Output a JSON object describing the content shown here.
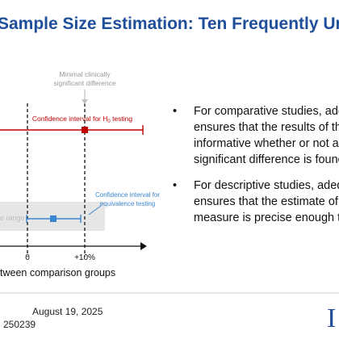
{
  "slide": {
    "title": "Sample Size Estimation: Ten Frequently Unanswered Questions",
    "bullets": [
      {
        "symbol": "•",
        "lines": [
          "For comparative studies, adequate power",
          "ensures that the results of the study are",
          "informative whether or not a clinically",
          "significant difference is found"
        ]
      },
      {
        "symbol": "•",
        "lines": [
          "For descriptive studies, adequate precision",
          "ensures that the estimate of the",
          "measure is precise enough to be useful"
        ]
      }
    ],
    "footer": {
      "date": "August 19, 2025",
      "id": "250239"
    },
    "logo_letter": "I"
  },
  "figure": {
    "annotation_top": [
      "Minimal clinically",
      "significant difference"
    ],
    "h0_label_prefix": "Confidence interval for H",
    "h0_label_sub": "0",
    "h0_label_suffix": " testing",
    "equiv_label": [
      "Confidence interval for",
      "equivalence testing"
    ],
    "range_label": "e range",
    "tick_zero": "0",
    "tick_plus10": "+10%",
    "xaxis_label": "tween comparison groups",
    "colors": {
      "red": "#c00000",
      "blue": "#3a86d0",
      "band": "#e6e6e6",
      "arrow": "#bfbfbf"
    }
  }
}
